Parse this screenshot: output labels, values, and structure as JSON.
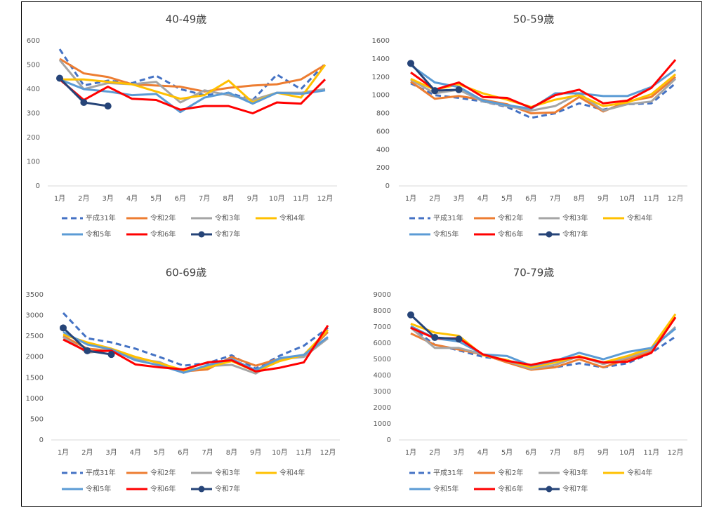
{
  "chart_data": [
    {
      "type": "line",
      "title": "40-49歳",
      "categories": [
        "1月",
        "2月",
        "3月",
        "4月",
        "5月",
        "6月",
        "7月",
        "8月",
        "9月",
        "10月",
        "11月",
        "12月"
      ],
      "ylim": [
        0,
        600
      ],
      "yticks": [
        0,
        100,
        200,
        300,
        400,
        500,
        600
      ],
      "grid": false,
      "series": [
        {
          "name": "平成31年",
          "color": "#4472c4",
          "style": "dashed",
          "values": [
            565,
            415,
            435,
            425,
            455,
            400,
            375,
            385,
            355,
            460,
            400,
            505
          ]
        },
        {
          "name": "令和2年",
          "color": "#ed7d31",
          "values": [
            525,
            465,
            450,
            420,
            415,
            410,
            390,
            405,
            415,
            420,
            440,
            500
          ]
        },
        {
          "name": "令和3年",
          "color": "#a5a5a5",
          "values": [
            520,
            400,
            425,
            420,
            430,
            345,
            395,
            375,
            355,
            385,
            385,
            400
          ]
        },
        {
          "name": "令和4年",
          "color": "#ffc000",
          "values": [
            440,
            440,
            430,
            420,
            390,
            360,
            375,
            435,
            345,
            385,
            365,
            500
          ]
        },
        {
          "name": "令和5年",
          "color": "#5b9bd5",
          "values": [
            440,
            400,
            390,
            375,
            380,
            305,
            365,
            385,
            340,
            385,
            380,
            395
          ]
        },
        {
          "name": "令和6年",
          "color": "#ff0000",
          "values": [
            440,
            355,
            410,
            360,
            355,
            315,
            330,
            330,
            300,
            345,
            340,
            440
          ]
        },
        {
          "name": "令和7年",
          "color": "#264478",
          "marker": "circle",
          "values": [
            445,
            345,
            330,
            null,
            null,
            null,
            null,
            null,
            null,
            null,
            null,
            null
          ]
        }
      ]
    },
    {
      "type": "line",
      "title": "50-59歳",
      "categories": [
        "1月",
        "2月",
        "3月",
        "4月",
        "5月",
        "6月",
        "7月",
        "8月",
        "9月",
        "10月",
        "11月",
        "12月"
      ],
      "ylim": [
        0,
        1600
      ],
      "yticks": [
        0,
        200,
        400,
        600,
        800,
        1000,
        1200,
        1400,
        1600
      ],
      "grid": false,
      "series": [
        {
          "name": "平成31年",
          "color": "#4472c4",
          "style": "dashed",
          "values": [
            1130,
            1000,
            970,
            930,
            870,
            750,
            800,
            910,
            840,
            900,
            910,
            1130
          ]
        },
        {
          "name": "令和2年",
          "color": "#ed7d31",
          "values": [
            1150,
            960,
            990,
            950,
            900,
            800,
            810,
            980,
            820,
            930,
            980,
            1200
          ]
        },
        {
          "name": "令和3年",
          "color": "#a5a5a5",
          "values": [
            1170,
            1020,
            1060,
            930,
            880,
            830,
            880,
            1020,
            830,
            900,
            930,
            1180
          ]
        },
        {
          "name": "令和4年",
          "color": "#ffc000",
          "values": [
            1180,
            1060,
            1120,
            1020,
            950,
            870,
            950,
            1000,
            880,
            920,
            1010,
            1230
          ]
        },
        {
          "name": "令和5年",
          "color": "#5b9bd5",
          "values": [
            1330,
            1140,
            1090,
            940,
            890,
            850,
            1020,
            1020,
            990,
            990,
            1090,
            1280
          ]
        },
        {
          "name": "令和6年",
          "color": "#ff0000",
          "values": [
            1250,
            1060,
            1140,
            980,
            970,
            860,
            1000,
            1060,
            910,
            940,
            1080,
            1390
          ]
        },
        {
          "name": "令和7年",
          "color": "#264478",
          "marker": "circle",
          "values": [
            1350,
            1050,
            1060,
            null,
            null,
            null,
            null,
            null,
            null,
            null,
            null,
            null
          ]
        }
      ]
    },
    {
      "type": "line",
      "title": "60-69歳",
      "categories": [
        "1月",
        "2月",
        "3月",
        "4月",
        "5月",
        "6月",
        "7月",
        "8月",
        "9月",
        "10月",
        "11月",
        "12月"
      ],
      "ylim": [
        0,
        3500
      ],
      "yticks": [
        0,
        500,
        1000,
        1500,
        2000,
        2500,
        3000,
        3500
      ],
      "grid": false,
      "series": [
        {
          "name": "平成31年",
          "color": "#4472c4",
          "style": "dashed",
          "values": [
            3060,
            2450,
            2350,
            2200,
            2000,
            1790,
            1850,
            2040,
            1720,
            2030,
            2270,
            2700
          ]
        },
        {
          "name": "令和2年",
          "color": "#ed7d31",
          "values": [
            2500,
            2200,
            2150,
            2000,
            1850,
            1650,
            1700,
            2000,
            1790,
            1960,
            2020,
            2600
          ]
        },
        {
          "name": "令和3年",
          "color": "#a5a5a5",
          "values": [
            2480,
            2100,
            2180,
            1950,
            1880,
            1620,
            1780,
            1810,
            1600,
            1950,
            2000,
            2450
          ]
        },
        {
          "name": "令和4年",
          "color": "#ffc000",
          "values": [
            2540,
            2350,
            2200,
            2000,
            1850,
            1680,
            1750,
            1900,
            1650,
            1900,
            2050,
            2650
          ]
        },
        {
          "name": "令和5年",
          "color": "#5b9bd5",
          "values": [
            2600,
            2300,
            2180,
            1920,
            1800,
            1620,
            1800,
            1950,
            1680,
            1970,
            2050,
            2480
          ]
        },
        {
          "name": "令和6年",
          "color": "#ff0000",
          "values": [
            2420,
            2130,
            2150,
            1820,
            1750,
            1700,
            1870,
            1920,
            1650,
            1740,
            1870,
            2760
          ]
        },
        {
          "name": "令和7年",
          "color": "#264478",
          "marker": "circle",
          "values": [
            2700,
            2150,
            2060,
            null,
            null,
            null,
            null,
            null,
            null,
            null,
            null,
            null
          ]
        }
      ]
    },
    {
      "type": "line",
      "title": "70-79歳",
      "categories": [
        "1月",
        "2月",
        "3月",
        "4月",
        "5月",
        "6月",
        "7月",
        "8月",
        "9月",
        "10月",
        "11月",
        "12月"
      ],
      "ylim": [
        0,
        9000
      ],
      "yticks": [
        0,
        1000,
        2000,
        3000,
        4000,
        5000,
        6000,
        7000,
        8000,
        9000
      ],
      "grid": false,
      "series": [
        {
          "name": "平成31年",
          "color": "#4472c4",
          "style": "dashed",
          "values": [
            7000,
            5900,
            5550,
            5150,
            4950,
            4550,
            4500,
            4750,
            4500,
            4750,
            5400,
            6400
          ]
        },
        {
          "name": "令和2年",
          "color": "#ed7d31",
          "values": [
            6600,
            5900,
            5600,
            5300,
            4800,
            4350,
            4500,
            5000,
            4500,
            5000,
            5500,
            7600
          ]
        },
        {
          "name": "令和3年",
          "color": "#a5a5a5",
          "values": [
            6950,
            5700,
            5700,
            5300,
            4900,
            4400,
            4650,
            5200,
            4700,
            5100,
            5600,
            7000
          ]
        },
        {
          "name": "令和4年",
          "color": "#ffc000",
          "values": [
            7200,
            6650,
            6450,
            5250,
            4950,
            4500,
            4800,
            5200,
            4800,
            5200,
            5700,
            7800
          ]
        },
        {
          "name": "令和5年",
          "color": "#5b9bd5",
          "values": [
            7050,
            6300,
            6100,
            5300,
            5200,
            4600,
            4900,
            5400,
            5000,
            5450,
            5700,
            6900
          ]
        },
        {
          "name": "令和6年",
          "color": "#ff0000",
          "values": [
            6950,
            6300,
            6300,
            5300,
            4900,
            4650,
            4950,
            5150,
            4800,
            4850,
            5400,
            7600
          ]
        },
        {
          "name": "令和7年",
          "color": "#264478",
          "marker": "circle",
          "values": [
            7750,
            6350,
            6250,
            null,
            null,
            null,
            null,
            null,
            null,
            null,
            null,
            null
          ]
        }
      ]
    }
  ]
}
